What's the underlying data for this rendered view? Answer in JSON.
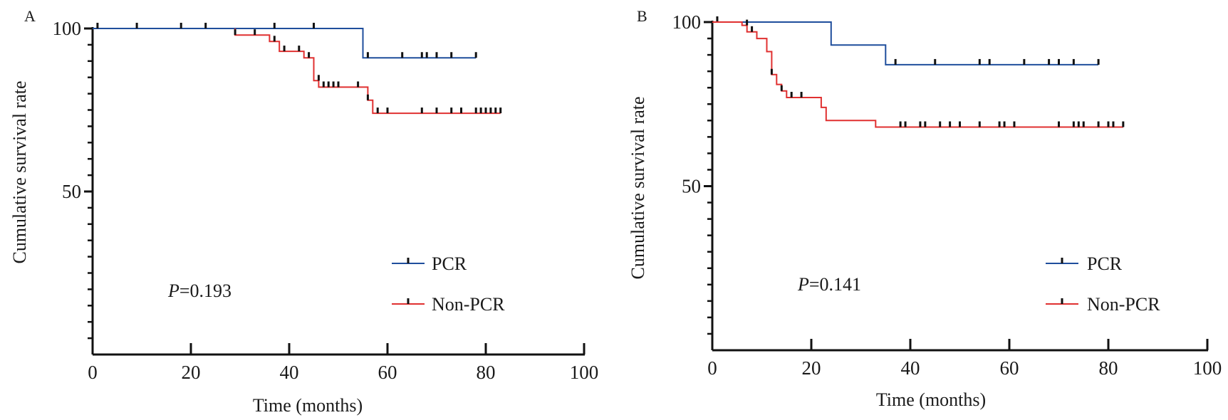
{
  "chart_data": [
    {
      "type": "line",
      "panel_label": "A",
      "xlabel": "Time (months)",
      "ylabel": "Cumulative survival rate",
      "xlim": [
        0,
        100
      ],
      "ylim": [
        0,
        100
      ],
      "x_ticks": [
        0,
        20,
        40,
        60,
        80,
        100
      ],
      "y_tick_labels": [
        50,
        100
      ],
      "annotation": {
        "prefix": "P",
        "text": "=0.193"
      },
      "legend": {
        "position": "bottom-right",
        "entries": [
          "PCR",
          "Non-PCR"
        ]
      },
      "series": [
        {
          "name": "PCR",
          "color": "#1f4e9c",
          "steps": [
            [
              0,
              100
            ],
            [
              55,
              100
            ],
            [
              55,
              91
            ],
            [
              78,
              91
            ]
          ],
          "censored": [
            [
              1,
              100
            ],
            [
              9,
              100
            ],
            [
              18,
              100
            ],
            [
              23,
              100
            ],
            [
              37,
              100
            ],
            [
              45,
              100
            ],
            [
              56,
              91
            ],
            [
              63,
              91
            ],
            [
              67,
              91
            ],
            [
              68,
              91
            ],
            [
              70,
              91
            ],
            [
              73,
              91
            ],
            [
              78,
              91
            ]
          ]
        },
        {
          "name": "Non-PCR",
          "color": "#e03030",
          "steps": [
            [
              29,
              100
            ],
            [
              29,
              98
            ],
            [
              36,
              98
            ],
            [
              36,
              96
            ],
            [
              38,
              96
            ],
            [
              38,
              93
            ],
            [
              43,
              93
            ],
            [
              43,
              91
            ],
            [
              45,
              91
            ],
            [
              45,
              84
            ],
            [
              46,
              84
            ],
            [
              46,
              82
            ],
            [
              56,
              82
            ],
            [
              56,
              78
            ],
            [
              57,
              78
            ],
            [
              57,
              74
            ],
            [
              83,
              74
            ]
          ],
          "censored": [
            [
              29,
              98
            ],
            [
              33,
              98
            ],
            [
              37,
              96
            ],
            [
              39,
              93
            ],
            [
              42,
              93
            ],
            [
              44,
              91
            ],
            [
              46,
              84
            ],
            [
              47,
              82
            ],
            [
              48,
              82
            ],
            [
              49,
              82
            ],
            [
              50,
              82
            ],
            [
              54,
              82
            ],
            [
              56,
              78
            ],
            [
              58,
              74
            ],
            [
              60,
              74
            ],
            [
              67,
              74
            ],
            [
              70,
              74
            ],
            [
              73,
              74
            ],
            [
              75,
              74
            ],
            [
              78,
              74
            ],
            [
              79,
              74
            ],
            [
              80,
              74
            ],
            [
              81,
              74
            ],
            [
              82,
              74
            ],
            [
              83,
              74
            ]
          ]
        }
      ]
    },
    {
      "type": "line",
      "panel_label": "B",
      "xlabel": "Time (months)",
      "ylabel": "Cumulative survival rate",
      "xlim": [
        0,
        100
      ],
      "ylim": [
        0,
        100
      ],
      "x_ticks": [
        0,
        20,
        40,
        60,
        80,
        100
      ],
      "y_tick_labels": [
        50,
        100
      ],
      "annotation": {
        "prefix": "P",
        "text": "=0.141"
      },
      "legend": {
        "position": "bottom-right",
        "entries": [
          "PCR",
          "Non-PCR"
        ]
      },
      "series": [
        {
          "name": "PCR",
          "color": "#1f4e9c",
          "steps": [
            [
              0,
              100
            ],
            [
              24,
              100
            ],
            [
              24,
              93
            ],
            [
              35,
              93
            ],
            [
              35,
              87
            ],
            [
              78,
              87
            ]
          ],
          "censored": [
            [
              1,
              100
            ],
            [
              37,
              87
            ],
            [
              45,
              87
            ],
            [
              54,
              87
            ],
            [
              56,
              87
            ],
            [
              63,
              87
            ],
            [
              68,
              87
            ],
            [
              70,
              87
            ],
            [
              73,
              87
            ],
            [
              78,
              87
            ]
          ]
        },
        {
          "name": "Non-PCR",
          "color": "#e03030",
          "steps": [
            [
              0,
              100
            ],
            [
              6,
              100
            ],
            [
              6,
              99
            ],
            [
              7,
              99
            ],
            [
              7,
              97
            ],
            [
              9,
              97
            ],
            [
              9,
              95
            ],
            [
              11,
              95
            ],
            [
              11,
              91
            ],
            [
              12,
              91
            ],
            [
              12,
              84
            ],
            [
              13,
              84
            ],
            [
              13,
              81
            ],
            [
              14,
              81
            ],
            [
              14,
              79
            ],
            [
              15,
              79
            ],
            [
              15,
              77
            ],
            [
              22,
              77
            ],
            [
              22,
              74
            ],
            [
              23,
              74
            ],
            [
              23,
              70
            ],
            [
              33,
              70
            ],
            [
              33,
              68
            ],
            [
              83,
              68
            ]
          ],
          "censored": [
            [
              7,
              99
            ],
            [
              8,
              97
            ],
            [
              12,
              84
            ],
            [
              14,
              79
            ],
            [
              16,
              77
            ],
            [
              18,
              77
            ],
            [
              38,
              68
            ],
            [
              39,
              68
            ],
            [
              42,
              68
            ],
            [
              43,
              68
            ],
            [
              46,
              68
            ],
            [
              48,
              68
            ],
            [
              50,
              68
            ],
            [
              54,
              68
            ],
            [
              58,
              68
            ],
            [
              59,
              68
            ],
            [
              61,
              68
            ],
            [
              70,
              68
            ],
            [
              73,
              68
            ],
            [
              74,
              68
            ],
            [
              75,
              68
            ],
            [
              78,
              68
            ],
            [
              80,
              68
            ],
            [
              81,
              68
            ],
            [
              83,
              68
            ]
          ]
        }
      ]
    }
  ]
}
